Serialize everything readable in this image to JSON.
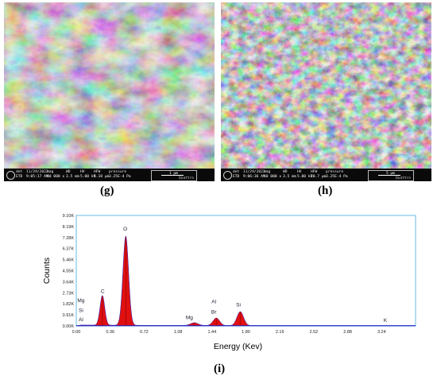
{
  "panels": {
    "g": {
      "label": "(g)",
      "info": {
        "det": "det",
        "mode": "ETD",
        "date": "11/29/2022",
        "time": "9:05:17 AM",
        "mag_label": "mag",
        "mag": "40 000 x",
        "wd_label": "WD",
        "wd": "3.5 mm",
        "hv_label": "HV",
        "hv": "5.00 kV",
        "hfw_label": "HFW",
        "hfw": "5.18 µm",
        "pressure_label": "pressure",
        "pressure": "3.25E-4 Pa",
        "scale": "1 µm",
        "brand": "Quattro"
      }
    },
    "h": {
      "label": "(h)",
      "info": {
        "det": "det",
        "mode": "ETD",
        "date": "11/29/2022",
        "time": "9:06:36 AM",
        "mag_label": "mag",
        "mag": "10 000 x",
        "wd_label": "WD",
        "wd": "3.5 mm",
        "hv_label": "HV",
        "hv": "5.00 kV",
        "hfw_label": "HFW",
        "hfw": "20.7 µm",
        "pressure_label": "pressure",
        "pressure": "3.25E-4 Pa",
        "scale": "5 µm",
        "brand": "Quattro"
      }
    },
    "i": {
      "label": "(i)"
    }
  },
  "chart_data": {
    "type": "area",
    "title": "",
    "xlabel": "Energy (Kev)",
    "ylabel": "Counts",
    "xlim": [
      0,
      3.6
    ],
    "ylim": [
      0,
      9100
    ],
    "x_ticks": [
      "0.00",
      "0.36",
      "0.72",
      "1.08",
      "1.44",
      "1.80",
      "2.16",
      "2.52",
      "2.88",
      "3.24"
    ],
    "y_ticks": [
      "0.00K",
      "0.91K",
      "1.82K",
      "2.73K",
      "3.64K",
      "4.55K",
      "5.46K",
      "6.37K",
      "7.28K",
      "8.19K",
      "9.10K"
    ],
    "peaks": [
      {
        "element": "C",
        "energy": 0.277,
        "counts": 2450,
        "width": 0.025
      },
      {
        "element": "O",
        "energy": 0.525,
        "counts": 7350,
        "width": 0.03
      },
      {
        "element": "Mg",
        "energy": 1.253,
        "counts": 230,
        "width": 0.04
      },
      {
        "element": "Al",
        "energy": 1.486,
        "counts": 620,
        "width": 0.035
      },
      {
        "element": "Si",
        "energy": 1.74,
        "counts": 1150,
        "width": 0.035
      }
    ],
    "baseline": 60,
    "labels": [
      {
        "text": "Mg",
        "energy": 0.05,
        "counts": 1950
      },
      {
        "text": "Si",
        "energy": 0.05,
        "counts": 1150
      },
      {
        "text": "Al",
        "energy": 0.05,
        "counts": 380
      },
      {
        "text": "C",
        "energy": 0.28,
        "counts": 2720
      },
      {
        "text": "O",
        "energy": 0.52,
        "counts": 7850
      },
      {
        "text": "Mg",
        "energy": 1.2,
        "counts": 560
      },
      {
        "text": "Al",
        "energy": 1.46,
        "counts": 1850
      },
      {
        "text": "Br",
        "energy": 1.46,
        "counts": 1010
      },
      {
        "text": "Si",
        "energy": 1.72,
        "counts": 1600
      },
      {
        "text": "K",
        "energy": 3.28,
        "counts": 320
      }
    ],
    "fill_color": "#e01010",
    "line_color": "#2222cc",
    "frame_color": "#7fc6e6",
    "label_color": "#1a1a2e"
  }
}
